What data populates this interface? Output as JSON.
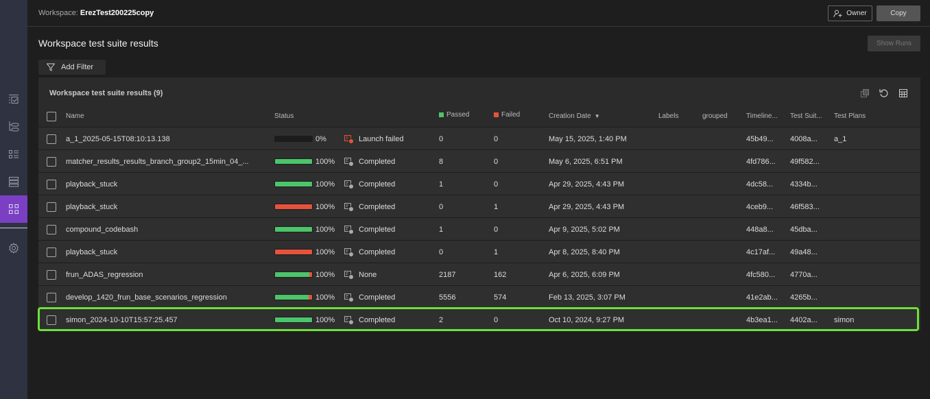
{
  "workspace": {
    "label": "Workspace:",
    "name": "ErezTest200225copy"
  },
  "header": {
    "owner_label": "Owner",
    "copy_label": "Copy"
  },
  "page": {
    "title": "Workspace test suite results",
    "show_runs_label": "Show Runs",
    "add_filter_label": "Add Filter"
  },
  "panel": {
    "title": "Workspace test suite results (9)"
  },
  "colors": {
    "passed": "#4cc46a",
    "failed": "#e5533c",
    "accent": "#7b3fc4",
    "highlight": "#6ce13a"
  },
  "columns": {
    "name": "Name",
    "status": "Status",
    "passed": "Passed",
    "failed": "Failed",
    "creation_date": "Creation Date",
    "labels": "Labels",
    "grouped": "grouped",
    "timeline": "Timeline...",
    "test_suite": "Test Suit...",
    "test_plans": "Test Plans"
  },
  "sidebar": {
    "items": [
      "test-results-icon",
      "branches-icon",
      "list-icon",
      "layers-icon",
      "grid-icon",
      "settings-icon"
    ],
    "active": 4
  },
  "rows": [
    {
      "name": "a_1_2025-05-15T08:10:13.138",
      "progress": 0,
      "progress_label": "0%",
      "status": "Launch failed",
      "error": true,
      "passed": "0",
      "failed": "0",
      "date": "May 15, 2025, 1:40 PM",
      "timeline": "45b49...",
      "suite": "4008a...",
      "plans": "a_1"
    },
    {
      "name": "matcher_results_results_branch_group2_15min_04_...",
      "progress": 100,
      "progress_label": "100%",
      "status": "Completed",
      "passed": "8",
      "failed": "0",
      "date": "May 6, 2025, 6:51 PM",
      "timeline": "4fd786...",
      "suite": "49f582...",
      "plans": ""
    },
    {
      "name": "playback_stuck",
      "progress": 100,
      "progress_label": "100%",
      "status": "Completed",
      "passed": "1",
      "failed": "0",
      "date": "Apr 29, 2025, 4:43 PM",
      "timeline": "4dc58...",
      "suite": "4334b...",
      "plans": ""
    },
    {
      "name": "playback_stuck",
      "progress": 100,
      "progress_label": "100%",
      "status": "Completed",
      "passed": "0",
      "failed": "1",
      "date": "Apr 29, 2025, 4:43 PM",
      "timeline": "4ceb9...",
      "suite": "46f583...",
      "plans": ""
    },
    {
      "name": "compound_codebash",
      "progress": 100,
      "progress_label": "100%",
      "status": "Completed",
      "passed": "1",
      "failed": "0",
      "date": "Apr 9, 2025, 5:02 PM",
      "timeline": "448a8...",
      "suite": "45dba...",
      "plans": ""
    },
    {
      "name": "playback_stuck",
      "progress": 100,
      "progress_label": "100%",
      "status": "Completed",
      "passed": "0",
      "failed": "1",
      "date": "Apr 8, 2025, 8:40 PM",
      "timeline": "4c17af...",
      "suite": "49a48...",
      "plans": ""
    },
    {
      "name": "frun_ADAS_regression",
      "progress": 100,
      "progress_label": "100%",
      "status": "None",
      "passed": "2187",
      "failed": "162",
      "date": "Apr 6, 2025, 6:09 PM",
      "timeline": "4fc580...",
      "suite": "4770a...",
      "plans": ""
    },
    {
      "name": "develop_1420_frun_base_scenarios_regression",
      "progress": 100,
      "progress_label": "100%",
      "status": "Completed",
      "passed": "5556",
      "failed": "574",
      "date": "Feb 13, 2025, 3:07 PM",
      "timeline": "41e2ab...",
      "suite": "4265b...",
      "plans": ""
    },
    {
      "name": "simon_2024-10-10T15:57:25.457",
      "progress": 100,
      "progress_label": "100%",
      "status": "Completed",
      "passed": "2",
      "failed": "0",
      "date": "Oct 10, 2024, 9:27 PM",
      "timeline": "4b3ea1...",
      "suite": "4402a...",
      "plans": "simon",
      "highlighted": true
    }
  ]
}
